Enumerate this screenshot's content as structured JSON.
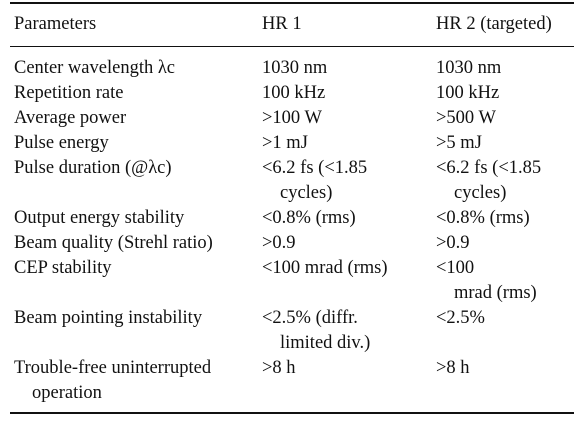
{
  "table": {
    "headers": [
      "Parameters",
      "HR 1",
      "HR 2 (targeted)"
    ],
    "rows": [
      {
        "param": "Center wavelength λc",
        "hr1": [
          "1030 nm"
        ],
        "hr2": [
          "1030 nm"
        ]
      },
      {
        "param": "Repetition rate",
        "hr1": [
          "100 kHz"
        ],
        "hr2": [
          "100 kHz"
        ]
      },
      {
        "param": "Average power",
        "hr1": [
          ">100 W"
        ],
        "hr2": [
          ">500 W"
        ]
      },
      {
        "param": "Pulse energy",
        "hr1": [
          ">1 mJ"
        ],
        "hr2": [
          ">5 mJ"
        ]
      },
      {
        "param": "Pulse duration (@λc)",
        "hr1": [
          "<6.2 fs (<1.85",
          "cycles)"
        ],
        "hr2": [
          "<6.2 fs (<1.85",
          "cycles)"
        ]
      },
      {
        "param": "Output energy stability",
        "hr1": [
          "<0.8% (rms)"
        ],
        "hr2": [
          "<0.8% (rms)"
        ]
      },
      {
        "param": "Beam quality (Strehl ratio)",
        "hr1": [
          ">0.9"
        ],
        "hr2": [
          ">0.9"
        ]
      },
      {
        "param": "CEP stability",
        "hr1": [
          "<100 mrad (rms)"
        ],
        "hr2": [
          "<100",
          "mrad (rms)"
        ]
      },
      {
        "param": "Beam pointing instability",
        "hr1": [
          "<2.5% (diffr.",
          "limited div.)"
        ],
        "hr2": [
          "<2.5%"
        ]
      },
      {
        "param": [
          "Trouble-free uninterrupted",
          "operation"
        ],
        "hr1": [
          ">8 h"
        ],
        "hr2": [
          ">8 h"
        ]
      }
    ]
  }
}
